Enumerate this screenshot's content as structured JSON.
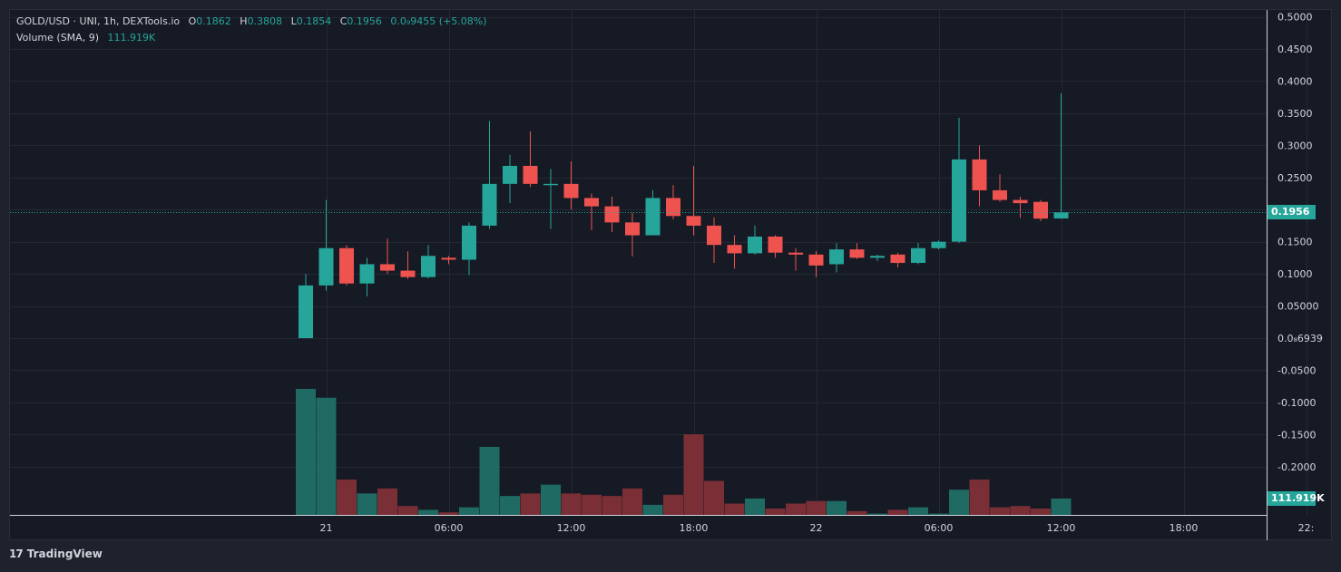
{
  "legend": {
    "symbol": "GOLD/USD · UNI, 1h, DEXTools.io",
    "open_label": "O",
    "open": "0.1862",
    "high_label": "H",
    "high": "0.3808",
    "low_label": "L",
    "low": "0.1854",
    "close_label": "C",
    "close": "0.1956",
    "change": "0.0₉9455 (+5.08%)",
    "volume_label": "Volume (SMA, 9)",
    "volume_value": "111.919K"
  },
  "badges": {
    "last_price": "0.1956",
    "volume": "111.919K"
  },
  "branding": {
    "name": "TradingView"
  },
  "colors": {
    "up": "#26a69a",
    "down": "#ef5350",
    "up_volume": "#1f6b64",
    "down_volume": "#7a2f36",
    "background": "#161a25",
    "grid": "#242833"
  },
  "chart_data": {
    "type": "candlestick",
    "yaxis_ticks": [
      "0.5000",
      "0.4500",
      "0.4000",
      "0.3500",
      "0.3000",
      "0.2500",
      "0.2000",
      "0.1500",
      "0.1000",
      "0.05000",
      "0.0₈6939",
      "-0.0500",
      "-0.1000",
      "-0.1500",
      "-0.2000"
    ],
    "yaxis_values": [
      0.5,
      0.45,
      0.4,
      0.35,
      0.3,
      0.25,
      0.2,
      0.15,
      0.1,
      0.05,
      0.0,
      -0.05,
      -0.1,
      -0.15,
      -0.2
    ],
    "xaxis_labels": [
      "21",
      "06:00",
      "12:00",
      "18:00",
      "22",
      "06:00",
      "12:00",
      "18:00",
      "22:"
    ],
    "xaxis_label_index": [
      1,
      7,
      13,
      19,
      25,
      31,
      37,
      43,
      49
    ],
    "candles": [
      {
        "o": 0.0,
        "h": 0.1,
        "l": 0.0,
        "c": 0.082
      },
      {
        "o": 0.082,
        "h": 0.215,
        "l": 0.074,
        "c": 0.14
      },
      {
        "o": 0.14,
        "h": 0.145,
        "l": 0.082,
        "c": 0.085
      },
      {
        "o": 0.085,
        "h": 0.125,
        "l": 0.065,
        "c": 0.115
      },
      {
        "o": 0.115,
        "h": 0.155,
        "l": 0.1,
        "c": 0.105
      },
      {
        "o": 0.105,
        "h": 0.135,
        "l": 0.092,
        "c": 0.095
      },
      {
        "o": 0.095,
        "h": 0.145,
        "l": 0.093,
        "c": 0.128
      },
      {
        "o": 0.125,
        "h": 0.128,
        "l": 0.115,
        "c": 0.122
      },
      {
        "o": 0.122,
        "h": 0.18,
        "l": 0.098,
        "c": 0.175
      },
      {
        "o": 0.175,
        "h": 0.338,
        "l": 0.17,
        "c": 0.24
      },
      {
        "o": 0.24,
        "h": 0.285,
        "l": 0.21,
        "c": 0.268
      },
      {
        "o": 0.268,
        "h": 0.322,
        "l": 0.235,
        "c": 0.24
      },
      {
        "o": 0.238,
        "h": 0.263,
        "l": 0.17,
        "c": 0.24
      },
      {
        "o": 0.24,
        "h": 0.275,
        "l": 0.2,
        "c": 0.218
      },
      {
        "o": 0.218,
        "h": 0.225,
        "l": 0.168,
        "c": 0.205
      },
      {
        "o": 0.205,
        "h": 0.22,
        "l": 0.165,
        "c": 0.18
      },
      {
        "o": 0.18,
        "h": 0.195,
        "l": 0.127,
        "c": 0.16
      },
      {
        "o": 0.16,
        "h": 0.23,
        "l": 0.16,
        "c": 0.218
      },
      {
        "o": 0.218,
        "h": 0.238,
        "l": 0.185,
        "c": 0.19
      },
      {
        "o": 0.19,
        "h": 0.268,
        "l": 0.16,
        "c": 0.175
      },
      {
        "o": 0.175,
        "h": 0.188,
        "l": 0.117,
        "c": 0.145
      },
      {
        "o": 0.145,
        "h": 0.16,
        "l": 0.108,
        "c": 0.132
      },
      {
        "o": 0.132,
        "h": 0.175,
        "l": 0.13,
        "c": 0.158
      },
      {
        "o": 0.158,
        "h": 0.16,
        "l": 0.125,
        "c": 0.133
      },
      {
        "o": 0.133,
        "h": 0.14,
        "l": 0.105,
        "c": 0.13
      },
      {
        "o": 0.13,
        "h": 0.135,
        "l": 0.095,
        "c": 0.113
      },
      {
        "o": 0.115,
        "h": 0.148,
        "l": 0.102,
        "c": 0.138
      },
      {
        "o": 0.138,
        "h": 0.148,
        "l": 0.123,
        "c": 0.125
      },
      {
        "o": 0.125,
        "h": 0.13,
        "l": 0.12,
        "c": 0.128
      },
      {
        "o": 0.13,
        "h": 0.133,
        "l": 0.11,
        "c": 0.117
      },
      {
        "o": 0.117,
        "h": 0.148,
        "l": 0.115,
        "c": 0.14
      },
      {
        "o": 0.14,
        "h": 0.152,
        "l": 0.138,
        "c": 0.15
      },
      {
        "o": 0.15,
        "h": 0.343,
        "l": 0.148,
        "c": 0.278
      },
      {
        "o": 0.278,
        "h": 0.3,
        "l": 0.205,
        "c": 0.23
      },
      {
        "o": 0.23,
        "h": 0.255,
        "l": 0.212,
        "c": 0.215
      },
      {
        "o": 0.215,
        "h": 0.22,
        "l": 0.187,
        "c": 0.21
      },
      {
        "o": 0.212,
        "h": 0.215,
        "l": 0.182,
        "c": 0.186
      },
      {
        "o": 0.1862,
        "h": 0.3808,
        "l": 0.1854,
        "c": 0.1956
      }
    ],
    "volume": [
      {
        "v": 1.0,
        "up": true
      },
      {
        "v": 0.93,
        "up": true
      },
      {
        "v": 0.28,
        "up": false
      },
      {
        "v": 0.17,
        "up": true
      },
      {
        "v": 0.21,
        "up": false
      },
      {
        "v": 0.07,
        "up": false
      },
      {
        "v": 0.04,
        "up": true
      },
      {
        "v": 0.02,
        "up": false
      },
      {
        "v": 0.06,
        "up": true
      },
      {
        "v": 0.54,
        "up": true
      },
      {
        "v": 0.15,
        "up": true
      },
      {
        "v": 0.17,
        "up": false
      },
      {
        "v": 0.24,
        "up": true
      },
      {
        "v": 0.17,
        "up": false
      },
      {
        "v": 0.16,
        "up": false
      },
      {
        "v": 0.15,
        "up": false
      },
      {
        "v": 0.21,
        "up": false
      },
      {
        "v": 0.08,
        "up": true
      },
      {
        "v": 0.16,
        "up": false
      },
      {
        "v": 0.64,
        "up": false
      },
      {
        "v": 0.27,
        "up": false
      },
      {
        "v": 0.09,
        "up": false
      },
      {
        "v": 0.13,
        "up": true
      },
      {
        "v": 0.05,
        "up": false
      },
      {
        "v": 0.09,
        "up": false
      },
      {
        "v": 0.11,
        "up": false
      },
      {
        "v": 0.11,
        "up": true
      },
      {
        "v": 0.03,
        "up": false
      },
      {
        "v": 0.01,
        "up": true
      },
      {
        "v": 0.04,
        "up": false
      },
      {
        "v": 0.06,
        "up": true
      },
      {
        "v": 0.01,
        "up": true
      },
      {
        "v": 0.2,
        "up": true
      },
      {
        "v": 0.28,
        "up": false
      },
      {
        "v": 0.06,
        "up": false
      },
      {
        "v": 0.07,
        "up": false
      },
      {
        "v": 0.05,
        "up": false
      },
      {
        "v": 0.13,
        "up": true
      }
    ]
  }
}
